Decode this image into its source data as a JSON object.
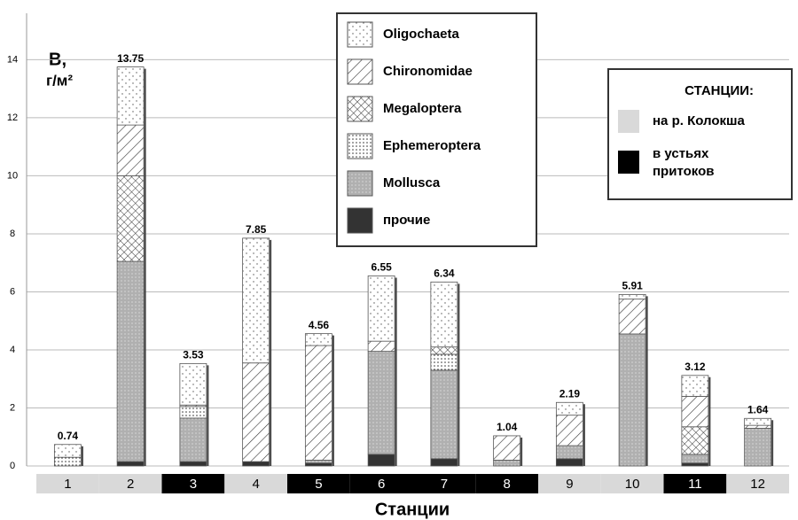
{
  "chart_data": {
    "type": "stacked_bar",
    "y_label": [
      "B,",
      "г/м²"
    ],
    "x_label": "Станции",
    "categories": [
      "1",
      "2",
      "3",
      "4",
      "5",
      "6",
      "7",
      "8",
      "9",
      "10",
      "11",
      "12"
    ],
    "series": [
      {
        "name": "прочие",
        "color": "#333333",
        "pattern": "solid",
        "values": [
          0,
          0.15,
          0.15,
          0.15,
          0.1,
          0.4,
          0.25,
          0,
          0.25,
          0,
          0.1,
          0
        ]
      },
      {
        "name": "Mollusca",
        "color": "#b0b0b0",
        "pattern": "finedots",
        "values": [
          0,
          6.9,
          1.5,
          0,
          0.1,
          3.55,
          3.05,
          0.2,
          0.45,
          4.55,
          0.3,
          1.3
        ]
      },
      {
        "name": "Ephemeroptera",
        "color": "#ffffff",
        "pattern": "densedots",
        "values": [
          0.3,
          0,
          0.4,
          0,
          0,
          0,
          0.55,
          0,
          0,
          0,
          0,
          0
        ]
      },
      {
        "name": "Megaloptera",
        "color": "#ffffff",
        "pattern": "cross",
        "values": [
          0,
          2.95,
          0,
          0,
          0,
          0,
          0.25,
          0,
          0,
          0,
          0.95,
          0
        ]
      },
      {
        "name": "Chironomidae",
        "color": "#ffffff",
        "pattern": "hatch",
        "values": [
          0,
          1.75,
          0.05,
          3.4,
          3.95,
          0.35,
          0,
          0.84,
          1.05,
          1.2,
          1.05,
          0.1
        ]
      },
      {
        "name": "Oligochaeta",
        "color": "#ffffff",
        "pattern": "sparsedots",
        "values": [
          0.44,
          2.0,
          1.43,
          4.3,
          0.41,
          2.25,
          2.24,
          0,
          0.44,
          0.16,
          0.72,
          0.24
        ]
      }
    ],
    "totals": [
      0.74,
      13.75,
      3.53,
      7.85,
      4.56,
      6.55,
      6.34,
      1.04,
      2.19,
      5.91,
      3.12,
      1.64
    ],
    "ylim": [
      0,
      15.6
    ],
    "yticks": [
      0,
      2,
      4,
      6,
      8,
      10,
      12,
      14
    ],
    "grid": true,
    "stations": {
      "title": "СТАНЦИИ:",
      "groups": [
        {
          "name": "на р. Колокша",
          "color": "#d9d9d9",
          "text_color": "#000000"
        },
        {
          "name": "в устьях притоков",
          "color": "#000000",
          "text_color": "#ffffff"
        }
      ],
      "membership": [
        0,
        0,
        1,
        0,
        1,
        1,
        1,
        1,
        0,
        0,
        1,
        0
      ]
    }
  }
}
